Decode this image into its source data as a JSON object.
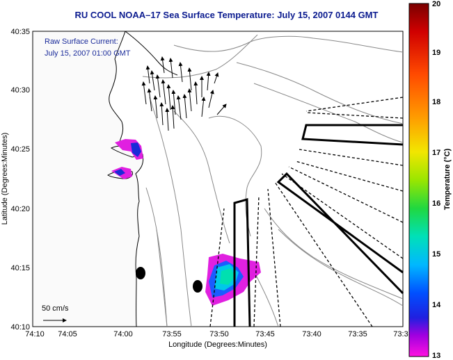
{
  "title": "RU COOL   NOAA–17  Sea Surface Temperature:  July 15, 2007 0144 GMT",
  "current_label": "Raw Surface Current:",
  "current_time": "July 15, 2007 01:00 GMT",
  "scale_label": "50 cm/s",
  "x_axis": {
    "label": "Longitude (Degrees:Minutes)",
    "ticks": [
      "74:10",
      "74:05",
      "74:00",
      "73:55",
      "73:50",
      "73:45",
      "73:40",
      "73:35",
      "73:3"
    ]
  },
  "y_axis": {
    "label": "Latitude (Degrees:Minutes)",
    "ticks": [
      "40:35",
      "40:30",
      "40:25",
      "40:20",
      "40:15",
      "40:10"
    ]
  },
  "colorbar": {
    "label": "Temperature (°C)",
    "ticks": [
      "20",
      "19",
      "18",
      "17",
      "16",
      "15",
      "14",
      "13"
    ],
    "colors": [
      "#8b0000",
      "#d40000",
      "#ff3000",
      "#ff8000",
      "#ffd000",
      "#c8f000",
      "#60e000",
      "#00d860",
      "#00e0c0",
      "#00c0ff",
      "#0070ff",
      "#1030ff",
      "#6020d0",
      "#c000e0",
      "#ff00d0"
    ]
  }
}
